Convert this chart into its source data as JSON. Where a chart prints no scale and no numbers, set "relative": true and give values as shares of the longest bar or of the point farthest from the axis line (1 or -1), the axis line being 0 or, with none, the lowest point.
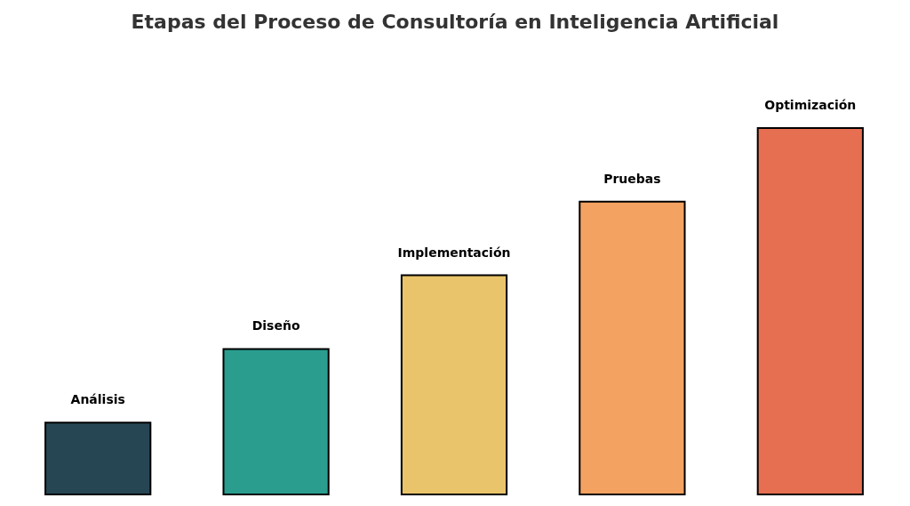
{
  "chart_data": {
    "type": "bar",
    "title": "Etapas del Proceso de Consultoría en Inteligencia Artificial",
    "categories": [
      "Análisis",
      "Diseño",
      "Implementación",
      "Pruebas",
      "Optimización"
    ],
    "values": [
      0.2,
      0.4,
      0.6,
      0.8,
      1
    ],
    "colors": [
      "#264653",
      "#2a9d8f",
      "#e9c46a",
      "#f4a261",
      "#e76f51"
    ],
    "relative": true
  }
}
